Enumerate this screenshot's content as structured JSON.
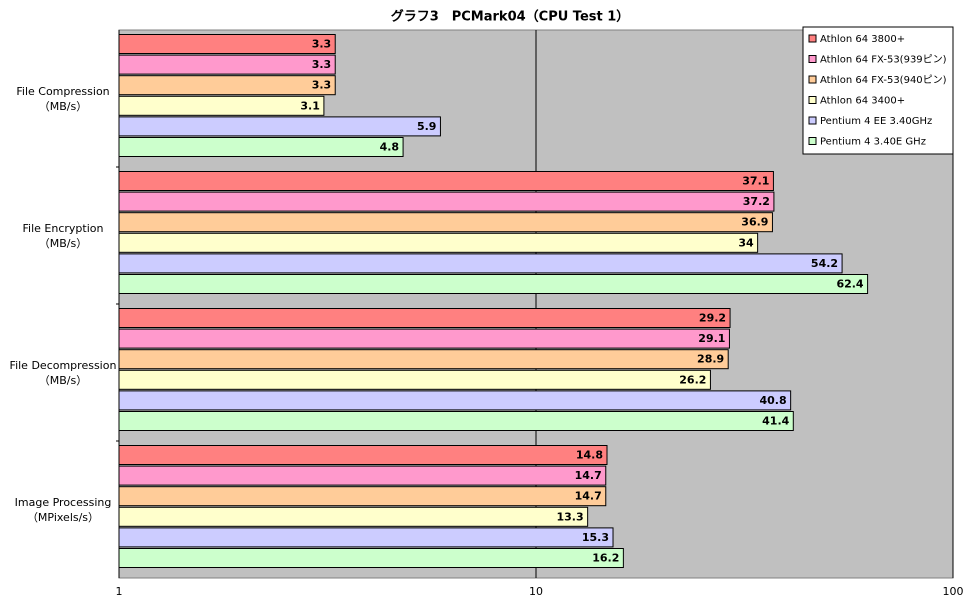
{
  "chart_data": {
    "type": "bar",
    "orientation": "horizontal",
    "title": "グラフ3　PCMark04（CPU Test 1）",
    "categories": [
      "File Compression\n（MB/s）",
      "File Encryption\n（MB/s）",
      "File Decompression\n（MB/s）",
      "Image Processing\n（MPixels/s）"
    ],
    "series": [
      {
        "name": "Athlon 64 3800+",
        "color": "#ff8080",
        "values": [
          3.3,
          37.1,
          29.2,
          14.8
        ]
      },
      {
        "name": "Athlon 64 FX-53(939ピン)",
        "color": "#ff99cc",
        "values": [
          3.3,
          37.2,
          29.1,
          14.7
        ]
      },
      {
        "name": "Athlon 64 FX-53(940ピン)",
        "color": "#ffcc99",
        "values": [
          3.3,
          36.9,
          28.9,
          14.7
        ]
      },
      {
        "name": "Athlon 64 3400+",
        "color": "#ffffcc",
        "values": [
          3.1,
          34,
          26.2,
          13.3
        ]
      },
      {
        "name": "Pentium 4 EE 3.40GHz",
        "color": "#ccccff",
        "values": [
          5.9,
          54.2,
          40.8,
          15.3
        ]
      },
      {
        "name": "Pentium 4 3.40E GHz",
        "color": "#ccffcc",
        "values": [
          4.8,
          62.4,
          41.4,
          16.2
        ]
      }
    ],
    "xlim": [
      1,
      100
    ],
    "xticks": [
      1,
      10,
      100
    ],
    "log_scale": true,
    "grid": true,
    "plot_background": "#c0c0c0",
    "legend": "top-right"
  }
}
